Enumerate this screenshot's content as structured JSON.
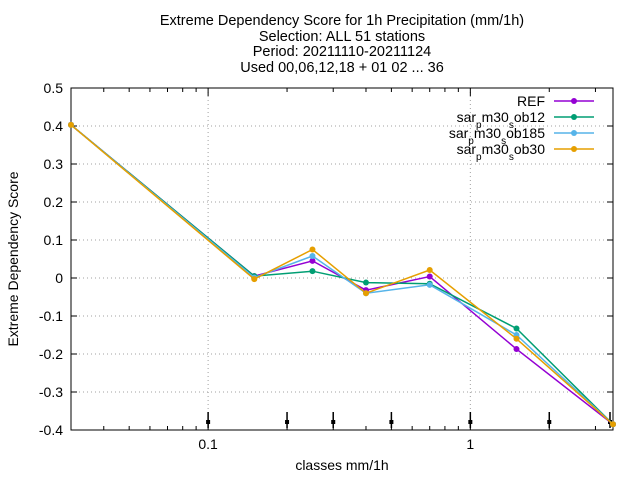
{
  "chart_data": {
    "type": "line",
    "title_lines": [
      "Extreme Dependency Score  for 1h Precipitation (mm/1h)",
      "Selection: ALL     51 stations",
      "Period: 20211110-20211124",
      "Used 00,06,12,18 + 01 02 ... 36"
    ],
    "xlabel": "classes mm/1h",
    "ylabel": "Extreme Dependency Score",
    "x_scale": "log",
    "xlim": [
      0.03,
      3.5
    ],
    "ylim": [
      -0.4,
      0.5
    ],
    "x_ticks": [
      {
        "value": 0.1,
        "label": "0.1"
      },
      {
        "value": 1,
        "label": "1"
      }
    ],
    "y_ticks": [
      {
        "value": -0.4,
        "label": "-0.4"
      },
      {
        "value": -0.3,
        "label": "-0.3"
      },
      {
        "value": -0.2,
        "label": "-0.2"
      },
      {
        "value": -0.1,
        "label": "-0.1"
      },
      {
        "value": 0.0,
        "label": "0"
      },
      {
        "value": 0.1,
        "label": "0.1"
      },
      {
        "value": 0.2,
        "label": "0.2"
      },
      {
        "value": 0.3,
        "label": "0.3"
      },
      {
        "value": 0.4,
        "label": "0.4"
      },
      {
        "value": 0.5,
        "label": "0.5"
      }
    ],
    "grid": true,
    "legend_position": "top-right",
    "x": [
      0.03,
      0.15,
      0.25,
      0.4,
      0.7,
      1.5,
      3.5
    ],
    "series": [
      {
        "name": "REF",
        "color": "#9400d3",
        "values": [
          0.403,
          0.005,
          0.045,
          -0.032,
          0.004,
          -0.187,
          -0.385
        ]
      },
      {
        "name": "sar_pm30_sob12",
        "color": "#009e73",
        "values": [
          0.403,
          0.005,
          0.018,
          -0.012,
          -0.015,
          -0.133,
          -0.385
        ]
      },
      {
        "name": "sar_pm30_sob185",
        "color": "#56b4e9",
        "values": [
          0.403,
          0.001,
          0.058,
          -0.04,
          -0.018,
          -0.15,
          -0.385
        ]
      },
      {
        "name": "sar_pm30_sob30",
        "color": "#e69f00",
        "values": [
          0.403,
          -0.003,
          0.075,
          -0.04,
          0.021,
          -0.16,
          -0.385
        ]
      }
    ],
    "threshold_markers_x": [
      0.1,
      0.2,
      0.3,
      0.5,
      1,
      2,
      3.5
    ]
  }
}
